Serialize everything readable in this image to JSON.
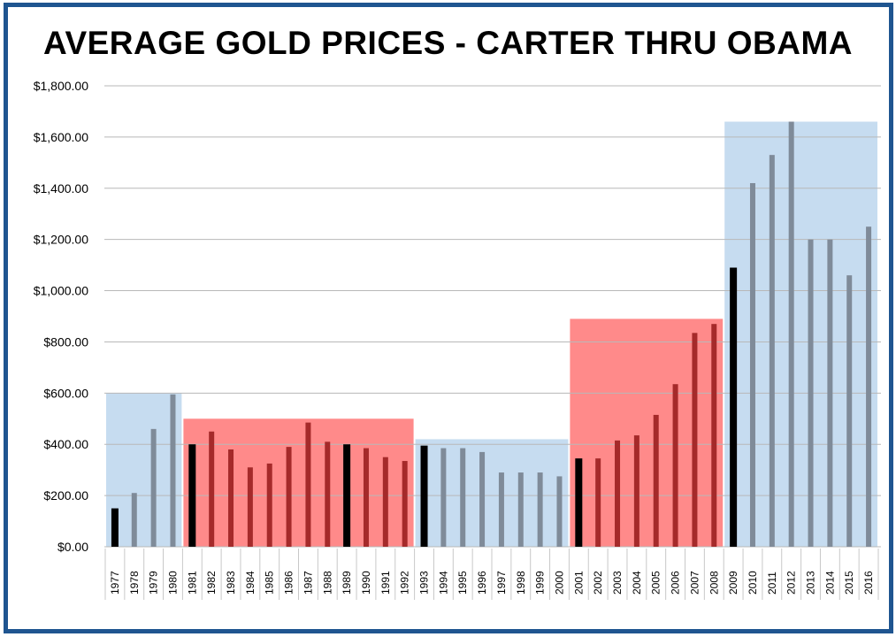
{
  "chart_data": {
    "type": "bar",
    "title": "AVERAGE GOLD PRICES - CARTER THRU OBAMA",
    "xlabel": "",
    "ylabel": "",
    "ylim": [
      0,
      1800
    ],
    "y_tick_values": [
      0,
      200,
      400,
      600,
      800,
      1000,
      1200,
      1400,
      1600,
      1800
    ],
    "y_tick_labels": [
      "$0.00",
      "$200.00",
      "$400.00",
      "$600.00",
      "$800.00",
      "$1,000.00",
      "$1,200.00",
      "$1,400.00",
      "$1,600.00",
      "$1,800.00"
    ],
    "grid": true,
    "legend": "none",
    "categories": [
      "1977",
      "1978",
      "1979",
      "1980",
      "1981",
      "1982",
      "1983",
      "1984",
      "1985",
      "1986",
      "1987",
      "1988",
      "1989",
      "1990",
      "1991",
      "1992",
      "1993",
      "1994",
      "1995",
      "1996",
      "1997",
      "1998",
      "1999",
      "2000",
      "2001",
      "2002",
      "2003",
      "2004",
      "2005",
      "2006",
      "2007",
      "2008",
      "2009",
      "2010",
      "2011",
      "2012",
      "2013",
      "2014",
      "2015",
      "2016"
    ],
    "values": [
      150,
      210,
      460,
      595,
      400,
      450,
      380,
      310,
      325,
      390,
      485,
      410,
      400,
      385,
      350,
      335,
      395,
      385,
      385,
      370,
      290,
      290,
      290,
      275,
      345,
      345,
      415,
      435,
      515,
      635,
      835,
      870,
      1090,
      1420,
      1530,
      1660,
      1200,
      1200,
      1060,
      1250
    ],
    "first_year_highlight": [
      "1977",
      "1981",
      "1989",
      "1993",
      "2001",
      "2009"
    ],
    "eras": [
      {
        "start": "1977",
        "end": "1980",
        "top": 600,
        "color": "#c6dcf0"
      },
      {
        "start": "1981",
        "end": "1992",
        "top": 500,
        "color": "#ff8a8a"
      },
      {
        "start": "1993",
        "end": "2000",
        "top": 420,
        "color": "#c6dcf0"
      },
      {
        "start": "2001",
        "end": "2008",
        "top": 890,
        "color": "#ff8a8a"
      },
      {
        "start": "2009",
        "end": "2016",
        "top": 1660,
        "color": "#c6dcf0"
      }
    ],
    "colors": {
      "frame": "#1f5590",
      "grid": "#b8b8b8",
      "bar_default": "#7f8b99",
      "bar_red_era": "#a52a2a",
      "bar_first_year": "#000000"
    }
  }
}
